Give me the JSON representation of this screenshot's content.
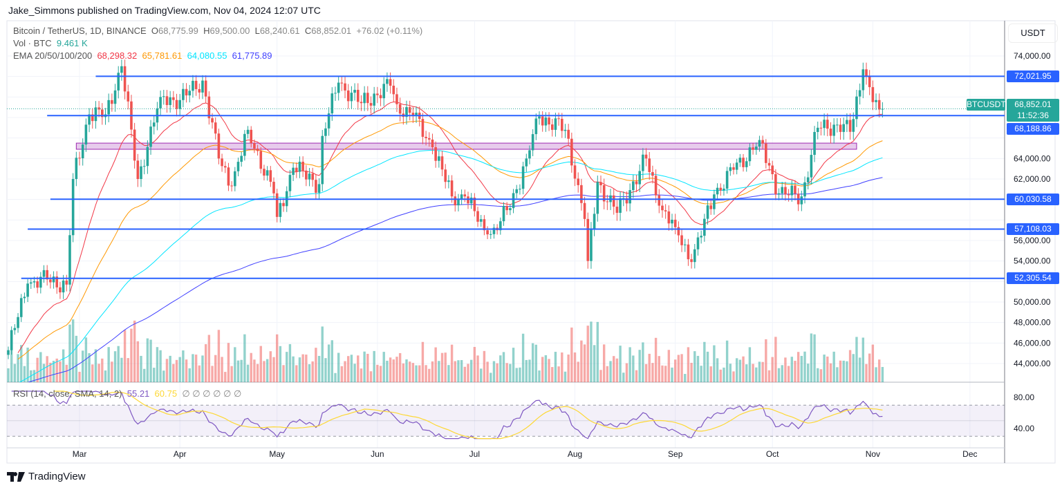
{
  "header": {
    "publisher": "Jake_Simmons published on TradingView.com, Nov 04, 2024 12:07 UTC"
  },
  "legend": {
    "symbol": "Bitcoin / TetherUS, 1D, BINANCE",
    "o_label": "O",
    "o": "68,775.99",
    "h_label": "H",
    "h": "69,500.00",
    "l_label": "L",
    "l": "68,240.61",
    "c_label": "C",
    "c": "68,852.01",
    "change": "+76.02 (+0.11%)",
    "vol_label": "Vol · BTC",
    "vol": "9.461 K",
    "ema_label": "EMA 20/50/100/200",
    "ema20": "68,298.32",
    "ema50": "65,781.61",
    "ema100": "64,080.55",
    "ema200": "61,775.89",
    "rsi_label": "RSI (14, close, SMA, 14, 2)",
    "rsi": "55.21",
    "rsi_sma": "60.75",
    "rsi_extra": "∅ ∅ ∅ ∅ ∅ ∅"
  },
  "axis": {
    "currency": "USDT",
    "symbol_tag": "BTCUSDT",
    "last_price": "68,852.01",
    "countdown": "11:52:36"
  },
  "colors": {
    "up": "#26a69a",
    "down": "#ef5350",
    "ema20": "#f23645",
    "ema50": "#ff9800",
    "ema100": "#00e5ff",
    "ema200": "#3f3fff",
    "levels": "#2962ff",
    "zone": "#e1bee7",
    "rsi": "#7e57c2",
    "rsi_sma": "#fdd835"
  },
  "branding": {
    "name": "TradingView"
  },
  "chart_data": {
    "type": "candlestick",
    "ylim": [
      42000,
      76000
    ],
    "yticks": [
      44000,
      46000,
      48000,
      50000,
      52000,
      54000,
      56000,
      58000,
      60000,
      62000,
      64000,
      66000,
      68000,
      70000,
      72000,
      74000
    ],
    "xticks": [
      {
        "label": "Mar",
        "date": "2024-03-01"
      },
      {
        "label": "Apr",
        "date": "2024-04-01"
      },
      {
        "label": "May",
        "date": "2024-05-01"
      },
      {
        "label": "Jun",
        "date": "2024-06-01"
      },
      {
        "label": "Jul",
        "date": "2024-07-01"
      },
      {
        "label": "Aug",
        "date": "2024-08-01"
      },
      {
        "label": "Sep",
        "date": "2024-09-01"
      },
      {
        "label": "Oct",
        "date": "2024-10-01"
      },
      {
        "label": "Nov",
        "date": "2024-11-01"
      },
      {
        "label": "Dec",
        "date": "2024-12-01"
      }
    ],
    "closes_approx": [
      [
        "2024-02-08",
        45300
      ],
      [
        "2024-02-14",
        51800
      ],
      [
        "2024-02-20",
        52200
      ],
      [
        "2024-02-26",
        51700
      ],
      [
        "2024-02-28",
        62000
      ],
      [
        "2024-03-04",
        68300
      ],
      [
        "2024-03-09",
        68300
      ],
      [
        "2024-03-14",
        73000
      ],
      [
        "2024-03-19",
        62000
      ],
      [
        "2024-03-26",
        70000
      ],
      [
        "2024-04-01",
        69700
      ],
      [
        "2024-04-08",
        71600
      ],
      [
        "2024-04-13",
        64000
      ],
      [
        "2024-04-17",
        61300
      ],
      [
        "2024-04-22",
        66800
      ],
      [
        "2024-04-30",
        60600
      ],
      [
        "2024-05-01",
        58300
      ],
      [
        "2024-05-06",
        63100
      ],
      [
        "2024-05-14",
        61500
      ],
      [
        "2024-05-15",
        66200
      ],
      [
        "2024-05-20",
        71400
      ],
      [
        "2024-05-27",
        69400
      ],
      [
        "2024-06-05",
        71100
      ],
      [
        "2024-06-07",
        69300
      ],
      [
        "2024-06-12",
        68200
      ],
      [
        "2024-06-18",
        65100
      ],
      [
        "2024-06-24",
        60300
      ],
      [
        "2024-06-28",
        60300
      ],
      [
        "2024-07-04",
        57000
      ],
      [
        "2024-07-05",
        56600
      ],
      [
        "2024-07-08",
        57000
      ],
      [
        "2024-07-14",
        61000
      ],
      [
        "2024-07-17",
        64000
      ],
      [
        "2024-07-21",
        68100
      ],
      [
        "2024-07-29",
        66800
      ],
      [
        "2024-08-02",
        61400
      ],
      [
        "2024-08-04",
        58100
      ],
      [
        "2024-08-05",
        54000
      ],
      [
        "2024-08-08",
        61700
      ],
      [
        "2024-08-14",
        58700
      ],
      [
        "2024-08-23",
        64000
      ],
      [
        "2024-08-27",
        59400
      ],
      [
        "2024-09-01",
        57300
      ],
      [
        "2024-09-06",
        53900
      ],
      [
        "2024-09-13",
        60500
      ],
      [
        "2024-09-19",
        62900
      ],
      [
        "2024-09-27",
        65800
      ],
      [
        "2024-10-03",
        60600
      ],
      [
        "2024-10-10",
        60300
      ],
      [
        "2024-10-15",
        67000
      ],
      [
        "2024-10-21",
        67300
      ],
      [
        "2024-10-25",
        66600
      ],
      [
        "2024-10-29",
        72700
      ],
      [
        "2024-11-01",
        69500
      ],
      [
        "2024-11-03",
        68776
      ],
      [
        "2024-11-04",
        68852
      ]
    ],
    "levels": [
      {
        "price": 72021.95,
        "label": "72,021.95",
        "from": "2024-03-06"
      },
      {
        "price": 68188.86,
        "label": "68,188.86",
        "from": "2024-02-20"
      },
      {
        "price": 60030.58,
        "label": "60,030.58",
        "from": "2024-02-21"
      },
      {
        "price": 57108.03,
        "label": "57,108.03",
        "from": "2024-02-14"
      },
      {
        "price": 52305.54,
        "label": "52,305.54",
        "from": "2024-02-12"
      }
    ],
    "zone": {
      "low": 64900,
      "high": 65500,
      "from": "2024-02-29",
      "to": "2024-10-27"
    },
    "ema_periods": [
      20,
      50,
      100,
      200
    ],
    "rsi": {
      "period": 14,
      "sma": 14,
      "upper": 70,
      "lower": 30,
      "ticks": [
        80,
        40
      ],
      "ylim": [
        25,
        90
      ]
    }
  }
}
